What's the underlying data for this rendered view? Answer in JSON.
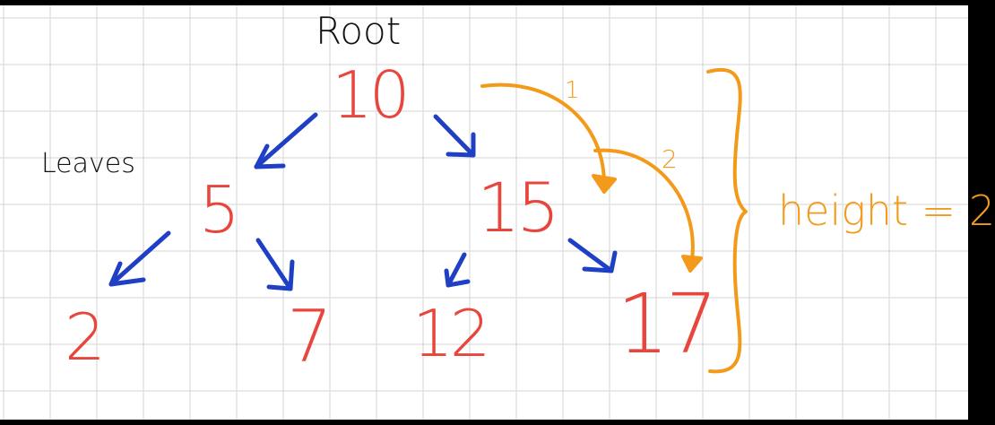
{
  "labels": {
    "root": "Root",
    "leaves": "Leaves",
    "height": "height = 2",
    "path_step_1": "1",
    "path_step_2": "2"
  },
  "tree": {
    "root": "10",
    "level1": [
      "5",
      "15"
    ],
    "level2": [
      "2",
      "7",
      "12",
      "17"
    ]
  },
  "colors": {
    "node": "#e8463c",
    "edge": "#1f3fc4",
    "height": "#f39a1a",
    "note": "#111111",
    "grid": "#d6d6d6"
  }
}
